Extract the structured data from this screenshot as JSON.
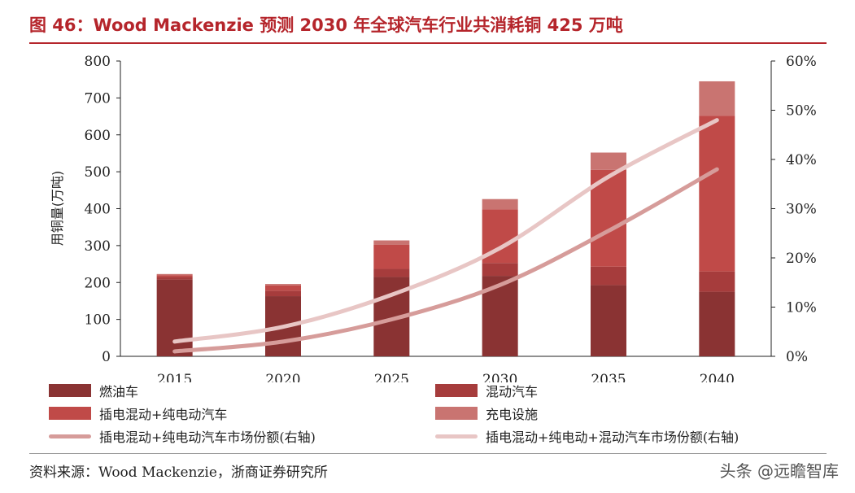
{
  "figure": {
    "title": "图 46：Wood Mackenzie 预测 2030 年全球汽车行业共消耗铜 425 万吨",
    "source": "资料来源：Wood Mackenzie，浙商证券研究所",
    "watermark": "头条 @远瞻智库"
  },
  "legend": {
    "items": [
      {
        "label": "燃油车",
        "kind": "bar",
        "color": "#8a3333"
      },
      {
        "label": "混动汽车",
        "kind": "bar",
        "color": "#a63c3c"
      },
      {
        "label": "插电混动+纯电动汽车",
        "kind": "bar",
        "color": "#c04a48"
      },
      {
        "label": "充电设施",
        "kind": "bar",
        "color": "#c97471"
      },
      {
        "label": "插电混动+纯电动汽车市场份额(右轴)",
        "kind": "line",
        "color": "#d69c9a"
      },
      {
        "label": "插电混动+纯电动+混动汽车市场份额(右轴)",
        "kind": "line",
        "color": "#e8c6c5"
      }
    ]
  },
  "chart_data": {
    "type": "bar",
    "stacked": true,
    "title": "Wood Mackenzie 预测 2030 年全球汽车行业共消耗铜 425 万吨",
    "categories": [
      "2015",
      "2020",
      "2025",
      "2030",
      "2035",
      "2040"
    ],
    "ylabel": "用铜量(万吨)",
    "ylim": [
      0,
      800
    ],
    "yticks": [
      "0",
      "100",
      "200",
      "300",
      "400",
      "500",
      "600",
      "700",
      "800"
    ],
    "y2lim": [
      0,
      60
    ],
    "y2ticks": [
      "0%",
      "10%",
      "20%",
      "30%",
      "40%",
      "50%",
      "60%"
    ],
    "series": [
      {
        "name": "燃油车",
        "type": "bar",
        "color": "#8a3333",
        "values": [
          208,
          163,
          215,
          218,
          193,
          175
        ]
      },
      {
        "name": "混动汽车",
        "type": "bar",
        "color": "#a63c3c",
        "values": [
          7,
          15,
          22,
          35,
          50,
          55
        ]
      },
      {
        "name": "插电混动+纯电动汽车",
        "type": "bar",
        "color": "#c04a48",
        "values": [
          5,
          14,
          65,
          145,
          262,
          422
        ]
      },
      {
        "name": "充电设施",
        "type": "bar",
        "color": "#c97471",
        "values": [
          3,
          4,
          12,
          28,
          47,
          93
        ]
      },
      {
        "name": "插电混动+纯电动汽车市场份额(右轴)",
        "type": "line",
        "axis": "right",
        "color": "#d69c9a",
        "values": [
          1,
          3,
          7.5,
          14.5,
          25.5,
          38
        ]
      },
      {
        "name": "插电混动+纯电动+混动汽车市场份额(右轴)",
        "type": "line",
        "axis": "right",
        "color": "#e8c6c5",
        "values": [
          3,
          6,
          12.5,
          22,
          36.5,
          48
        ]
      }
    ]
  }
}
